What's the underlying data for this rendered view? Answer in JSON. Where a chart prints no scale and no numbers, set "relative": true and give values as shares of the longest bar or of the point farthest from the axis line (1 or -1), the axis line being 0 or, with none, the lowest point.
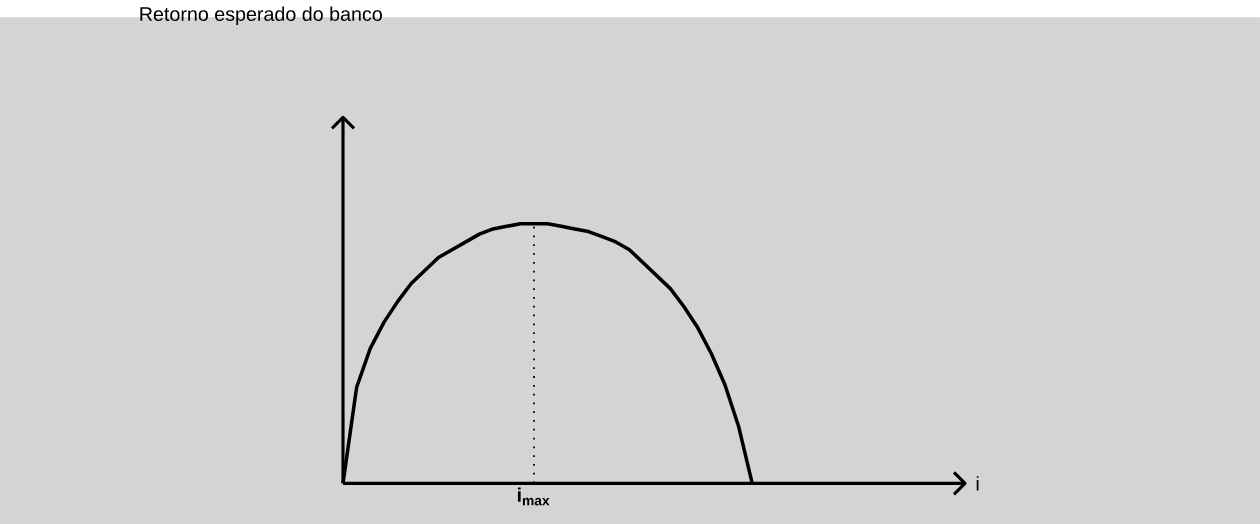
{
  "chart_data": {
    "type": "line",
    "relative": true,
    "title": "Retorno esperado do banco",
    "categories": [
      null,
      null,
      null,
      null,
      null,
      null,
      null,
      null,
      null,
      null,
      null,
      null,
      null,
      null,
      null,
      null,
      null,
      null,
      null,
      null,
      null,
      null,
      null,
      null,
      null,
      null,
      null,
      null,
      null,
      null,
      null
    ],
    "values": [
      0,
      0.37,
      0.52,
      0.62,
      0.7,
      0.77,
      0.82,
      0.87,
      0.9,
      0.93,
      0.96,
      0.98,
      0.99,
      1.0,
      1.0,
      1.0,
      0.99,
      0.98,
      0.97,
      0.95,
      0.93,
      0.9,
      0.85,
      0.8,
      0.75,
      0.68,
      0.6,
      0.5,
      0.38,
      0.22,
      0
    ],
    "color": "#000000",
    "annotations": [
      "i$_{max}$",
      "i"
    ]
  }
}
